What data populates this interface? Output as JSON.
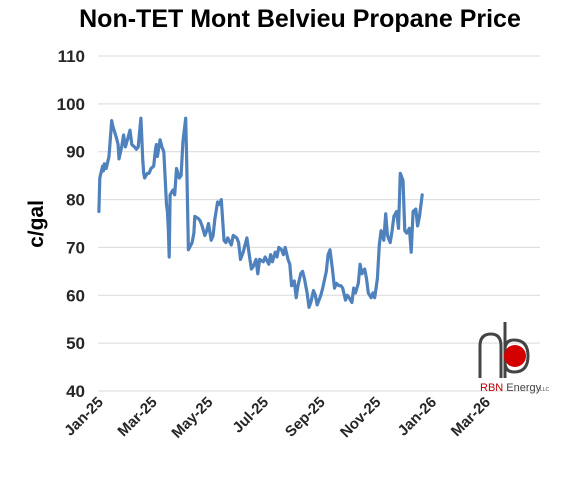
{
  "chart_data": {
    "type": "line",
    "title": "Non-TET Mont Belvieu Propane Price",
    "ylabel": "c/gal",
    "xlabel": "",
    "ylim": [
      40,
      110
    ],
    "yticks": [
      40,
      50,
      60,
      70,
      80,
      90,
      100,
      110
    ],
    "grid": "horizontal",
    "x_tick_labels": [
      "Jan-25",
      "Mar-25",
      "May-25",
      "Jul-25",
      "Sep-25",
      "Nov-25",
      "Jan-26",
      "Mar-26"
    ],
    "x_tick_dates": [
      "2025-01-01",
      "2025-03-01",
      "2025-05-01",
      "2025-07-01",
      "2025-09-01",
      "2025-11-01",
      "2026-01-01",
      "2026-03-01"
    ],
    "series": [
      {
        "name": "",
        "color": "#4f81bd",
        "points": [
          [
            "2025-01-02",
            77.5
          ],
          [
            "2025-01-03",
            84.5
          ],
          [
            "2025-01-06",
            87.0
          ],
          [
            "2025-01-07",
            86.0
          ],
          [
            "2025-01-08",
            87.5
          ],
          [
            "2025-01-10",
            86.5
          ],
          [
            "2025-01-13",
            89.0
          ],
          [
            "2025-01-15",
            94.0
          ],
          [
            "2025-01-16",
            96.5
          ],
          [
            "2025-01-17",
            95.5
          ],
          [
            "2025-01-21",
            93.0
          ],
          [
            "2025-01-23",
            91.5
          ],
          [
            "2025-01-24",
            88.5
          ],
          [
            "2025-01-27",
            91.0
          ],
          [
            "2025-01-29",
            93.5
          ],
          [
            "2025-01-31",
            91.0
          ],
          [
            "2025-02-03",
            93.0
          ],
          [
            "2025-02-05",
            94.5
          ],
          [
            "2025-02-07",
            91.5
          ],
          [
            "2025-02-10",
            91.0
          ],
          [
            "2025-02-12",
            90.5
          ],
          [
            "2025-02-14",
            91.0
          ],
          [
            "2025-02-17",
            97.0
          ],
          [
            "2025-02-18",
            93.0
          ],
          [
            "2025-02-19",
            88.5
          ],
          [
            "2025-02-20",
            85.5
          ],
          [
            "2025-02-21",
            84.5
          ],
          [
            "2025-02-24",
            85.5
          ],
          [
            "2025-02-26",
            85.5
          ],
          [
            "2025-02-28",
            86.5
          ],
          [
            "2025-03-03",
            87.0
          ],
          [
            "2025-03-05",
            90.5
          ],
          [
            "2025-03-06",
            91.5
          ],
          [
            "2025-03-07",
            89.0
          ],
          [
            "2025-03-10",
            92.5
          ],
          [
            "2025-03-12",
            91.0
          ],
          [
            "2025-03-14",
            90.0
          ],
          [
            "2025-03-17",
            79.0
          ],
          [
            "2025-03-18",
            77.5
          ],
          [
            "2025-03-19",
            74.0
          ],
          [
            "2025-03-20",
            68.0
          ],
          [
            "2025-03-21",
            81.0
          ],
          [
            "2025-03-24",
            82.0
          ],
          [
            "2025-03-26",
            81.0
          ],
          [
            "2025-03-28",
            86.5
          ],
          [
            "2025-03-31",
            84.5
          ],
          [
            "2025-04-02",
            85.0
          ],
          [
            "2025-04-04",
            92.0
          ],
          [
            "2025-04-07",
            97.0
          ],
          [
            "2025-04-08",
            89.0
          ],
          [
            "2025-04-09",
            79.0
          ],
          [
            "2025-04-10",
            69.5
          ],
          [
            "2025-04-14",
            71.0
          ],
          [
            "2025-04-16",
            73.0
          ],
          [
            "2025-04-17",
            76.5
          ],
          [
            "2025-04-21",
            76.0
          ],
          [
            "2025-04-23",
            75.5
          ],
          [
            "2025-04-25",
            74.5
          ],
          [
            "2025-04-28",
            72.5
          ],
          [
            "2025-04-30",
            73.5
          ],
          [
            "2025-05-02",
            75.0
          ],
          [
            "2025-05-05",
            71.5
          ],
          [
            "2025-05-07",
            72.5
          ],
          [
            "2025-05-09",
            76.0
          ],
          [
            "2025-05-12",
            79.5
          ],
          [
            "2025-05-14",
            79.0
          ],
          [
            "2025-05-16",
            80.0
          ],
          [
            "2025-05-19",
            71.5
          ],
          [
            "2025-05-21",
            71.0
          ],
          [
            "2025-05-23",
            72.0
          ],
          [
            "2025-05-27",
            70.5
          ],
          [
            "2025-05-29",
            72.5
          ],
          [
            "2025-06-02",
            72.0
          ],
          [
            "2025-06-04",
            71.0
          ],
          [
            "2025-06-06",
            67.5
          ],
          [
            "2025-06-09",
            69.0
          ],
          [
            "2025-06-11",
            70.5
          ],
          [
            "2025-06-13",
            72.0
          ],
          [
            "2025-06-16",
            68.0
          ],
          [
            "2025-06-18",
            65.5
          ],
          [
            "2025-06-20",
            66.0
          ],
          [
            "2025-06-23",
            67.5
          ],
          [
            "2025-06-25",
            64.5
          ],
          [
            "2025-06-27",
            67.5
          ],
          [
            "2025-07-01",
            67.0
          ],
          [
            "2025-07-03",
            68.0
          ],
          [
            "2025-07-07",
            66.5
          ],
          [
            "2025-07-09",
            68.5
          ],
          [
            "2025-07-11",
            67.0
          ],
          [
            "2025-07-14",
            69.0
          ],
          [
            "2025-07-16",
            68.0
          ],
          [
            "2025-07-18",
            70.0
          ],
          [
            "2025-07-21",
            69.5
          ],
          [
            "2025-07-23",
            68.5
          ],
          [
            "2025-07-25",
            70.0
          ],
          [
            "2025-07-28",
            67.5
          ],
          [
            "2025-07-30",
            66.5
          ],
          [
            "2025-08-01",
            62.0
          ],
          [
            "2025-08-04",
            63.0
          ],
          [
            "2025-08-06",
            59.5
          ],
          [
            "2025-08-08",
            62.0
          ],
          [
            "2025-08-11",
            64.5
          ],
          [
            "2025-08-13",
            65.0
          ],
          [
            "2025-08-15",
            63.5
          ],
          [
            "2025-08-18",
            60.5
          ],
          [
            "2025-08-20",
            57.5
          ],
          [
            "2025-08-22",
            58.5
          ],
          [
            "2025-08-25",
            61.0
          ],
          [
            "2025-08-27",
            60.0
          ],
          [
            "2025-08-29",
            58.0
          ],
          [
            "2025-09-02",
            60.0
          ],
          [
            "2025-09-04",
            61.5
          ],
          [
            "2025-09-08",
            65.0
          ],
          [
            "2025-09-10",
            68.5
          ],
          [
            "2025-09-12",
            69.5
          ],
          [
            "2025-09-15",
            65.0
          ],
          [
            "2025-09-17",
            61.5
          ],
          [
            "2025-09-19",
            62.5
          ],
          [
            "2025-09-22",
            62.0
          ],
          [
            "2025-09-24",
            62.0
          ],
          [
            "2025-09-26",
            61.5
          ],
          [
            "2025-09-29",
            59.0
          ],
          [
            "2025-10-01",
            60.0
          ],
          [
            "2025-10-03",
            59.5
          ],
          [
            "2025-10-06",
            58.5
          ],
          [
            "2025-10-08",
            61.5
          ],
          [
            "2025-10-10",
            60.5
          ],
          [
            "2025-10-13",
            62.5
          ],
          [
            "2025-10-15",
            66.5
          ],
          [
            "2025-10-17",
            64.5
          ],
          [
            "2025-10-20",
            65.5
          ],
          [
            "2025-10-22",
            63.5
          ],
          [
            "2025-10-24",
            60.5
          ],
          [
            "2025-10-27",
            59.5
          ],
          [
            "2025-10-29",
            60.5
          ],
          [
            "2025-10-31",
            59.5
          ],
          [
            "2025-11-03",
            63.5
          ],
          [
            "2025-11-05",
            70.5
          ],
          [
            "2025-11-07",
            73.5
          ],
          [
            "2025-11-10",
            71.5
          ],
          [
            "2025-11-12",
            77.0
          ],
          [
            "2025-11-14",
            72.5
          ],
          [
            "2025-11-17",
            71.0
          ],
          [
            "2025-11-19",
            73.5
          ],
          [
            "2025-11-21",
            76.5
          ],
          [
            "2025-11-24",
            77.5
          ],
          [
            "2025-11-26",
            74.0
          ],
          [
            "2025-11-28",
            85.5
          ],
          [
            "2025-12-01",
            84.0
          ],
          [
            "2025-12-03",
            73.5
          ],
          [
            "2025-12-05",
            73.0
          ],
          [
            "2025-12-08",
            74.0
          ],
          [
            "2025-12-10",
            69.0
          ],
          [
            "2025-12-12",
            77.5
          ],
          [
            "2025-12-15",
            78.0
          ],
          [
            "2025-12-17",
            74.5
          ],
          [
            "2025-12-19",
            76.5
          ],
          [
            "2025-12-22",
            81.0
          ]
        ]
      }
    ]
  },
  "logo": {
    "letters": "rb",
    "brand_red": "RBN",
    "brand_rest": " Energy",
    "suffix": "LLC",
    "dot_color": "#d40000"
  }
}
